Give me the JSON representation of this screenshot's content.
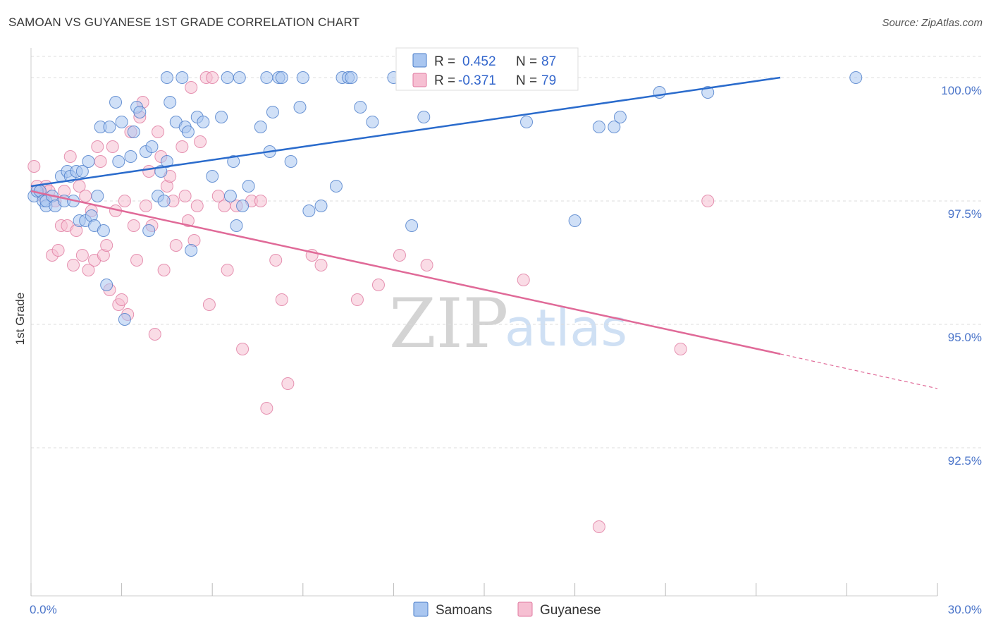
{
  "title": "SAMOAN VS GUYANESE 1ST GRADE CORRELATION CHART",
  "source": "Source: ZipAtlas.com",
  "watermark": {
    "zip": "ZIP",
    "atlas": "atlas"
  },
  "colors": {
    "blue_fill": "#a9c6f0",
    "blue_stroke": "#4a7cc9",
    "blue_line": "#2a6bcc",
    "pink_fill": "#f6bfd2",
    "pink_stroke": "#e07aa0",
    "pink_line": "#e06a98",
    "tick_text": "#4a74c9",
    "grid": "#dddddd"
  },
  "chart_data": {
    "type": "scatter",
    "title": "SAMOAN VS GUYANESE 1ST GRADE CORRELATION CHART",
    "ylabel": "1st Grade",
    "xlim": [
      0,
      30
    ],
    "ylim": [
      89.5,
      100.6
    ],
    "x_tick_labels": [
      "0.0%",
      "30.0%"
    ],
    "y_ticks": [
      92.5,
      95.0,
      97.5,
      100.0
    ],
    "y_tick_labels": [
      "92.5%",
      "95.0%",
      "97.5%",
      "100.0%"
    ],
    "legend": {
      "position": "top-center",
      "entries": [
        {
          "r_label": "R =",
          "r_value": "0.452",
          "n_label": "N =",
          "n_value": "87"
        },
        {
          "r_label": "R =",
          "r_value": "-0.371",
          "n_label": "N =",
          "n_value": "79"
        }
      ]
    },
    "series": [
      {
        "name": "Samoans",
        "trend": {
          "x": [
            0,
            24.8
          ],
          "y": [
            97.8,
            100.0
          ]
        },
        "points": [
          [
            0.1,
            97.6
          ],
          [
            0.2,
            97.7
          ],
          [
            0.3,
            97.7
          ],
          [
            0.4,
            97.5
          ],
          [
            0.5,
            97.4
          ],
          [
            0.5,
            97.5
          ],
          [
            0.7,
            97.6
          ],
          [
            0.8,
            97.4
          ],
          [
            1.0,
            98.0
          ],
          [
            1.1,
            97.5
          ],
          [
            1.2,
            98.1
          ],
          [
            1.3,
            98.0
          ],
          [
            1.4,
            97.5
          ],
          [
            1.5,
            98.1
          ],
          [
            1.6,
            97.1
          ],
          [
            1.7,
            98.1
          ],
          [
            1.8,
            97.1
          ],
          [
            1.9,
            98.3
          ],
          [
            2.0,
            97.2
          ],
          [
            2.1,
            97.0
          ],
          [
            2.2,
            97.6
          ],
          [
            2.3,
            99.0
          ],
          [
            2.4,
            96.9
          ],
          [
            2.5,
            95.8
          ],
          [
            2.6,
            99.0
          ],
          [
            2.8,
            99.5
          ],
          [
            2.9,
            98.3
          ],
          [
            3.0,
            99.1
          ],
          [
            3.1,
            95.1
          ],
          [
            3.3,
            98.4
          ],
          [
            3.4,
            98.9
          ],
          [
            3.5,
            99.4
          ],
          [
            3.6,
            99.3
          ],
          [
            3.8,
            98.5
          ],
          [
            3.9,
            96.9
          ],
          [
            4.0,
            98.6
          ],
          [
            4.2,
            97.6
          ],
          [
            4.3,
            98.1
          ],
          [
            4.4,
            97.5
          ],
          [
            4.5,
            98.3
          ],
          [
            4.5,
            100.0
          ],
          [
            4.6,
            99.5
          ],
          [
            4.8,
            99.1
          ],
          [
            5.0,
            100.0
          ],
          [
            5.1,
            99.0
          ],
          [
            5.2,
            98.9
          ],
          [
            5.3,
            96.5
          ],
          [
            5.5,
            99.2
          ],
          [
            5.7,
            99.1
          ],
          [
            6.0,
            98.0
          ],
          [
            6.3,
            99.2
          ],
          [
            6.5,
            100.0
          ],
          [
            6.6,
            97.6
          ],
          [
            6.7,
            98.3
          ],
          [
            6.8,
            97.0
          ],
          [
            6.9,
            100.0
          ],
          [
            7.0,
            97.4
          ],
          [
            7.2,
            97.8
          ],
          [
            7.6,
            99.0
          ],
          [
            7.8,
            100.0
          ],
          [
            7.9,
            98.5
          ],
          [
            8.0,
            99.3
          ],
          [
            8.2,
            100.0
          ],
          [
            8.3,
            100.0
          ],
          [
            8.6,
            98.3
          ],
          [
            8.9,
            99.4
          ],
          [
            9.0,
            100.0
          ],
          [
            9.2,
            97.3
          ],
          [
            9.6,
            97.4
          ],
          [
            10.1,
            97.8
          ],
          [
            10.3,
            100.0
          ],
          [
            10.5,
            100.0
          ],
          [
            10.6,
            100.0
          ],
          [
            10.9,
            99.4
          ],
          [
            11.3,
            99.1
          ],
          [
            12.0,
            100.0
          ],
          [
            12.6,
            97.0
          ],
          [
            13.0,
            99.2
          ],
          [
            14.0,
            100.0
          ],
          [
            16.4,
            99.1
          ],
          [
            18.0,
            97.1
          ],
          [
            18.8,
            99.0
          ],
          [
            19.3,
            99.0
          ],
          [
            19.5,
            99.2
          ],
          [
            20.8,
            99.7
          ],
          [
            22.4,
            99.7
          ],
          [
            27.3,
            100.0
          ]
        ]
      },
      {
        "name": "Guyanese",
        "trend": {
          "x": [
            0,
            24.8
          ],
          "y": [
            97.7,
            94.4
          ]
        },
        "trend_dashed": {
          "x": [
            24.8,
            30
          ],
          "y": [
            94.4,
            93.7
          ]
        },
        "points": [
          [
            0.1,
            98.2
          ],
          [
            0.2,
            97.8
          ],
          [
            0.3,
            97.7
          ],
          [
            0.4,
            97.6
          ],
          [
            0.5,
            97.8
          ],
          [
            0.6,
            97.7
          ],
          [
            0.7,
            96.4
          ],
          [
            0.8,
            97.5
          ],
          [
            0.9,
            96.5
          ],
          [
            1.0,
            97.0
          ],
          [
            1.1,
            97.7
          ],
          [
            1.2,
            97.0
          ],
          [
            1.3,
            98.4
          ],
          [
            1.4,
            96.2
          ],
          [
            1.5,
            96.9
          ],
          [
            1.6,
            97.8
          ],
          [
            1.7,
            96.4
          ],
          [
            1.8,
            97.6
          ],
          [
            1.9,
            96.1
          ],
          [
            2.0,
            97.3
          ],
          [
            2.1,
            96.3
          ],
          [
            2.2,
            98.6
          ],
          [
            2.3,
            98.3
          ],
          [
            2.4,
            96.4
          ],
          [
            2.5,
            96.6
          ],
          [
            2.6,
            95.7
          ],
          [
            2.7,
            98.6
          ],
          [
            2.8,
            97.3
          ],
          [
            2.9,
            95.4
          ],
          [
            3.0,
            95.5
          ],
          [
            3.1,
            97.5
          ],
          [
            3.2,
            95.2
          ],
          [
            3.3,
            98.9
          ],
          [
            3.4,
            97.0
          ],
          [
            3.5,
            96.3
          ],
          [
            3.6,
            99.2
          ],
          [
            3.7,
            99.5
          ],
          [
            3.8,
            97.4
          ],
          [
            3.9,
            98.1
          ],
          [
            4.0,
            97.0
          ],
          [
            4.1,
            94.8
          ],
          [
            4.2,
            98.9
          ],
          [
            4.3,
            98.4
          ],
          [
            4.4,
            96.1
          ],
          [
            4.5,
            97.8
          ],
          [
            4.6,
            98.0
          ],
          [
            4.7,
            97.5
          ],
          [
            4.8,
            96.6
          ],
          [
            5.0,
            98.6
          ],
          [
            5.1,
            97.6
          ],
          [
            5.2,
            97.1
          ],
          [
            5.3,
            99.8
          ],
          [
            5.4,
            96.7
          ],
          [
            5.5,
            97.4
          ],
          [
            5.6,
            98.7
          ],
          [
            5.8,
            100.0
          ],
          [
            5.9,
            95.4
          ],
          [
            6.0,
            100.0
          ],
          [
            6.2,
            97.6
          ],
          [
            6.4,
            97.4
          ],
          [
            6.5,
            96.1
          ],
          [
            6.8,
            97.4
          ],
          [
            7.0,
            94.5
          ],
          [
            7.3,
            97.5
          ],
          [
            7.6,
            97.5
          ],
          [
            7.8,
            93.3
          ],
          [
            8.1,
            96.3
          ],
          [
            8.3,
            95.5
          ],
          [
            8.5,
            93.8
          ],
          [
            9.3,
            96.4
          ],
          [
            9.6,
            96.2
          ],
          [
            10.8,
            95.5
          ],
          [
            11.5,
            95.8
          ],
          [
            12.2,
            96.4
          ],
          [
            13.1,
            96.2
          ],
          [
            16.3,
            95.9
          ],
          [
            18.8,
            90.9
          ],
          [
            21.5,
            94.5
          ],
          [
            22.4,
            97.5
          ]
        ]
      }
    ]
  }
}
